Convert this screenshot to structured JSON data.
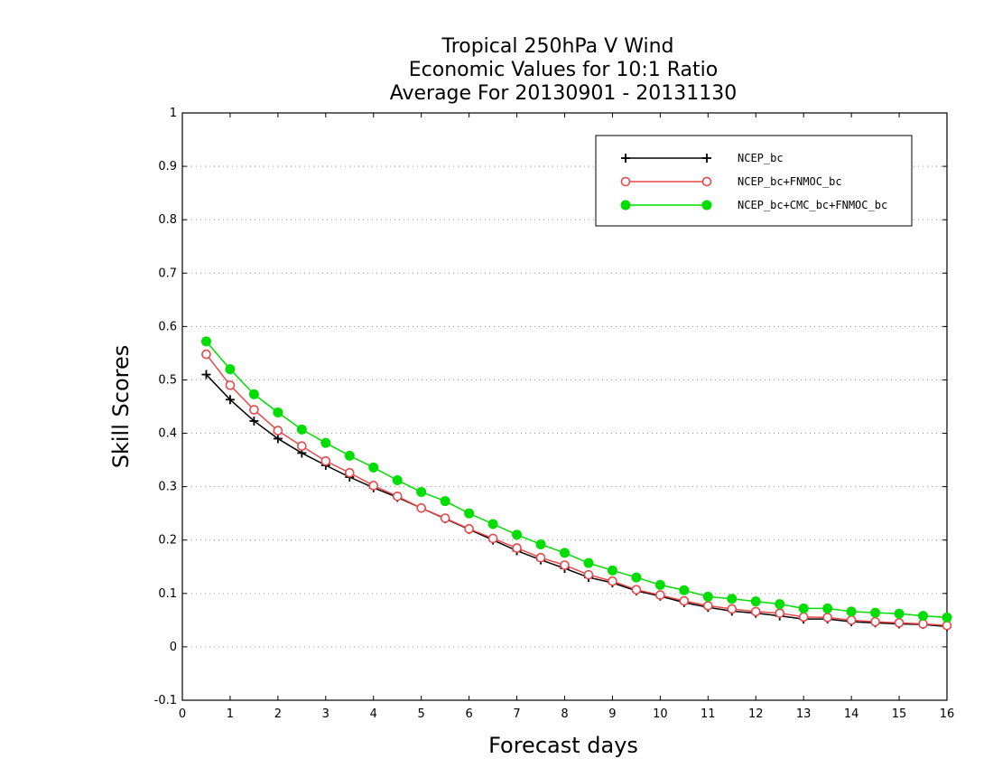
{
  "chart_data": {
    "type": "line",
    "title_lines": [
      "Tropical 250hPa V Wind",
      "Economic Values for 10:1 Ratio",
      "Average For 20130901 - 20131130"
    ],
    "xlabel": "Forecast days",
    "ylabel": "Skill Scores",
    "xlim": [
      0,
      16
    ],
    "ylim": [
      -0.1,
      1
    ],
    "x_ticks": [
      0,
      1,
      2,
      3,
      4,
      5,
      6,
      7,
      8,
      9,
      10,
      11,
      12,
      13,
      14,
      15,
      16
    ],
    "x_tick_labels": [
      "0",
      "1",
      "2",
      "3",
      "4",
      "5",
      "6",
      "7",
      "8",
      "9",
      "10",
      "11",
      "12",
      "13",
      "14",
      "15",
      "16"
    ],
    "y_ticks": [
      -0.1,
      0,
      0.1,
      0.2,
      0.3,
      0.4,
      0.5,
      0.6,
      0.7,
      0.8,
      0.9,
      1
    ],
    "y_tick_labels": [
      "-0.1",
      "0",
      "0.1",
      "0.2",
      "0.3",
      "0.4",
      "0.5",
      "0.6",
      "0.7",
      "0.8",
      "0.9",
      "1"
    ],
    "grid": "horizontal dotted",
    "legend_position": "top-right",
    "x": [
      0.5,
      1,
      1.5,
      2,
      2.5,
      3,
      3.5,
      4,
      4.5,
      5,
      5.5,
      6,
      6.5,
      7,
      7.5,
      8,
      8.5,
      9,
      9.5,
      10,
      10.5,
      11,
      11.5,
      12,
      12.5,
      13,
      13.5,
      14,
      14.5,
      15,
      15.5,
      16
    ],
    "series": [
      {
        "name": "NCEP_bc",
        "color": "#000000",
        "marker": "plus",
        "values": [
          0.51,
          0.463,
          0.423,
          0.39,
          0.363,
          0.34,
          0.318,
          0.298,
          0.28,
          0.26,
          0.24,
          0.22,
          0.2,
          0.18,
          0.163,
          0.147,
          0.13,
          0.12,
          0.105,
          0.095,
          0.083,
          0.074,
          0.067,
          0.063,
          0.058,
          0.052,
          0.052,
          0.047,
          0.045,
          0.043,
          0.042,
          0.038
        ]
      },
      {
        "name": "NCEP_bc+FNMOC_bc",
        "color": "#e8484a",
        "marker": "open-circle",
        "values": [
          0.548,
          0.49,
          0.444,
          0.405,
          0.376,
          0.348,
          0.326,
          0.302,
          0.282,
          0.26,
          0.241,
          0.221,
          0.203,
          0.185,
          0.167,
          0.153,
          0.135,
          0.123,
          0.107,
          0.097,
          0.086,
          0.077,
          0.071,
          0.066,
          0.063,
          0.056,
          0.055,
          0.05,
          0.047,
          0.045,
          0.043,
          0.04
        ]
      },
      {
        "name": "NCEP_bc+CMC_bc+FNMOC_bc",
        "color": "#00dd00",
        "marker": "filled-circle",
        "values": [
          0.572,
          0.52,
          0.473,
          0.439,
          0.407,
          0.382,
          0.358,
          0.336,
          0.312,
          0.29,
          0.273,
          0.25,
          0.23,
          0.21,
          0.192,
          0.176,
          0.157,
          0.143,
          0.13,
          0.116,
          0.106,
          0.094,
          0.09,
          0.085,
          0.08,
          0.072,
          0.072,
          0.066,
          0.064,
          0.062,
          0.058,
          0.055
        ]
      }
    ]
  }
}
